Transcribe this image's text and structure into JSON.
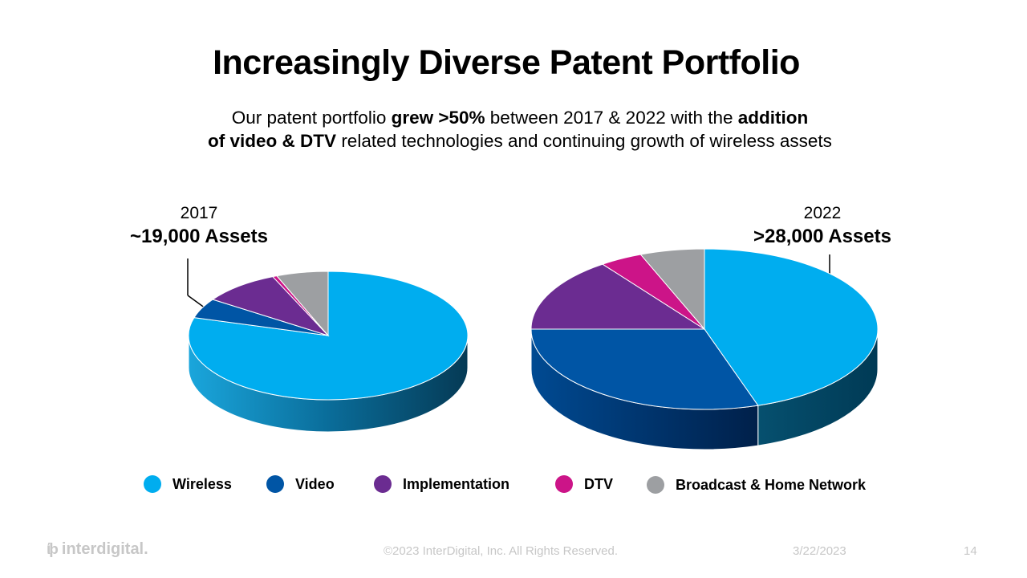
{
  "title": "Increasingly Diverse Patent Portfolio",
  "subtitle": {
    "l1_a": "Our patent portfolio ",
    "l1_b": "grew >50%",
    "l1_c": " between 2017 & 2022 with the ",
    "l1_d": "addition",
    "l2_a": "of video & DTV",
    "l2_b": " related technologies and continuing growth of wireless assets"
  },
  "colors": {
    "Wireless": "#00adef",
    "Video": "#0055a5",
    "Implementation": "#6b2c91",
    "DTV": "#cc1488",
    "Broadcast & Home Network": "#9d9fa2"
  },
  "chart_data": [
    {
      "type": "pie",
      "year_label": "2017",
      "title": "~19,000 Assets",
      "categories": [
        "Wireless",
        "Video",
        "Implementation",
        "DTV",
        "Broadcast & Home Network"
      ],
      "values": [
        79.5,
        5,
        9,
        0.5,
        6
      ]
    },
    {
      "type": "pie",
      "year_label": "2022",
      "title": ">28,000 Assets",
      "categories": [
        "Wireless",
        "Video",
        "Implementation",
        "DTV",
        "Broadcast & Home Network"
      ],
      "values": [
        45,
        30,
        15,
        4,
        6
      ]
    }
  ],
  "legend": [
    {
      "label": "Wireless",
      "color": "#00adef"
    },
    {
      "label": "Video",
      "color": "#0055a5"
    },
    {
      "label": "Implementation",
      "color": "#6b2c91"
    },
    {
      "label": "DTV",
      "color": "#cc1488"
    },
    {
      "label": "Broadcast & Home Network",
      "color": "#9d9fa2"
    }
  ],
  "footer": {
    "logo_mark": "ίϸ",
    "logo_text": "interdigital.",
    "copyright": "©2023 InterDigital, Inc. All Rights Reserved.",
    "date": "3/22/2023",
    "page": "14"
  }
}
